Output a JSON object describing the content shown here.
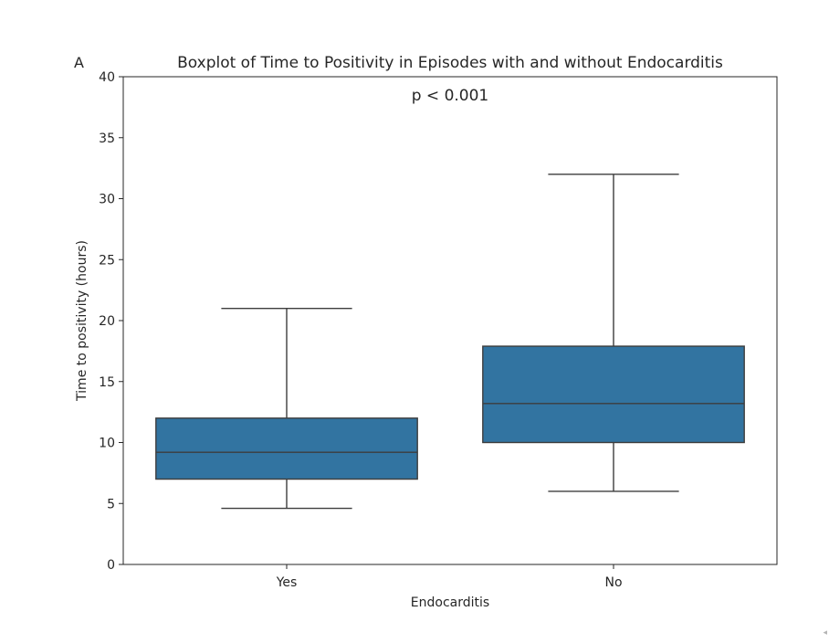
{
  "panel_label": "A",
  "annotation": "p < 0.001",
  "colors": {
    "box_fill": "#3274a1",
    "line": "#3d3d3d",
    "axis": "#262626",
    "background": "#ffffff"
  },
  "chart_data": {
    "type": "box",
    "title": "Boxplot of Time to Positivity in Episodes with and without Endocarditis",
    "xlabel": "Endocarditis",
    "ylabel": "Time to positivity (hours)",
    "ylim": [
      0,
      40
    ],
    "yticks": [
      0,
      5,
      10,
      15,
      20,
      25,
      30,
      35,
      40
    ],
    "grid": false,
    "categories": [
      "Yes",
      "No"
    ],
    "boxes": [
      {
        "category": "Yes",
        "whisker_low": 4.6,
        "q1": 7.0,
        "median": 9.2,
        "q3": 12.0,
        "whisker_high": 21.0
      },
      {
        "category": "No",
        "whisker_low": 6.0,
        "q1": 10.0,
        "median": 13.2,
        "q3": 17.9,
        "whisker_high": 32.0
      }
    ]
  }
}
